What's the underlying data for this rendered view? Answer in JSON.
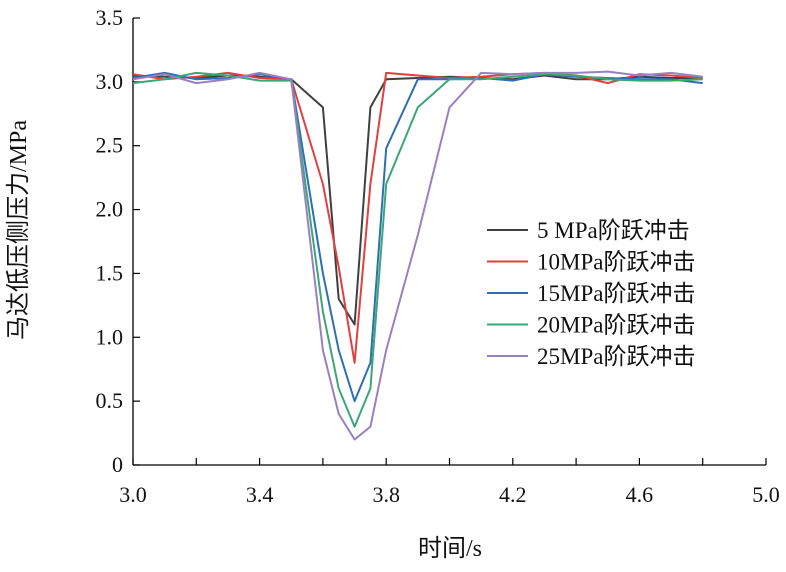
{
  "chart_data": {
    "type": "line",
    "title": "",
    "xlabel": "时间/s",
    "ylabel": "马达低压侧压力/MPa",
    "xlim": [
      3.0,
      5.0
    ],
    "ylim": [
      0,
      3.5
    ],
    "xticks": [
      3.0,
      3.4,
      3.8,
      4.2,
      4.6,
      5.0
    ],
    "xtick_labels": [
      "3.0",
      "3.4",
      "3.8",
      "4.2",
      "4.6",
      "5.0"
    ],
    "yticks": [
      0,
      0.5,
      1.0,
      1.5,
      2.0,
      2.5,
      3.0,
      3.5
    ],
    "ytick_labels": [
      "0",
      "0.5",
      "1.0",
      "1.5",
      "2.0",
      "2.5",
      "3.0",
      "3.5"
    ],
    "grid": false,
    "legend_position": "right",
    "series": [
      {
        "name": "5 MPa阶跃冲击",
        "color": "#404040",
        "x": [
          3.0,
          3.1,
          3.2,
          3.3,
          3.4,
          3.5,
          3.6,
          3.65,
          3.7,
          3.75,
          3.8,
          3.9,
          4.0,
          4.1,
          4.2,
          4.3,
          4.4,
          4.5,
          4.6,
          4.7,
          4.8
        ],
        "y": [
          3.05,
          3.04,
          3.03,
          3.05,
          3.04,
          3.02,
          2.8,
          1.3,
          1.1,
          2.8,
          3.02,
          3.03,
          3.04,
          3.03,
          3.02,
          3.05,
          3.02,
          3.02,
          3.04,
          3.03,
          3.03
        ]
      },
      {
        "name": "10MPa阶跃冲击",
        "color": "#e0403f",
        "x": [
          3.0,
          3.1,
          3.2,
          3.3,
          3.4,
          3.5,
          3.6,
          3.65,
          3.7,
          3.75,
          3.8,
          3.9,
          4.0,
          4.1,
          4.2,
          4.3,
          4.4,
          4.5,
          4.6,
          4.7,
          4.8
        ],
        "y": [
          3.06,
          3.02,
          3.04,
          3.07,
          3.03,
          3.02,
          2.2,
          1.55,
          0.8,
          2.2,
          3.07,
          3.05,
          3.03,
          3.04,
          3.06,
          3.07,
          3.05,
          2.99,
          3.06,
          3.05,
          3.03
        ]
      },
      {
        "name": "15MPa阶跃冲击",
        "color": "#2e6eb5",
        "x": [
          3.0,
          3.1,
          3.2,
          3.3,
          3.4,
          3.5,
          3.6,
          3.65,
          3.7,
          3.75,
          3.8,
          3.9,
          4.0,
          4.1,
          4.2,
          4.3,
          4.4,
          4.5,
          4.6,
          4.7,
          4.8
        ],
        "y": [
          3.03,
          3.07,
          3.02,
          3.03,
          3.06,
          3.02,
          1.5,
          0.9,
          0.5,
          0.8,
          2.48,
          3.02,
          3.02,
          3.03,
          3.01,
          3.06,
          3.04,
          3.03,
          3.02,
          3.02,
          2.99
        ]
      },
      {
        "name": "20MPa阶跃冲击",
        "color": "#3aa876",
        "x": [
          3.0,
          3.1,
          3.2,
          3.3,
          3.4,
          3.5,
          3.6,
          3.65,
          3.7,
          3.75,
          3.8,
          3.9,
          4.0,
          4.1,
          4.2,
          4.3,
          4.4,
          4.5,
          4.6,
          4.7,
          4.8
        ],
        "y": [
          2.99,
          3.02,
          3.07,
          3.05,
          3.01,
          3.01,
          1.2,
          0.6,
          0.3,
          0.6,
          2.2,
          2.8,
          3.02,
          3.02,
          3.04,
          3.06,
          3.05,
          3.02,
          3.01,
          3.01,
          3.02
        ]
      },
      {
        "name": "25MPa阶跃冲击",
        "color": "#9a80c0",
        "x": [
          3.0,
          3.1,
          3.2,
          3.3,
          3.4,
          3.5,
          3.6,
          3.65,
          3.7,
          3.75,
          3.8,
          3.9,
          4.0,
          4.1,
          4.2,
          4.3,
          4.4,
          4.5,
          4.6,
          4.7,
          4.8
        ],
        "y": [
          3.02,
          3.06,
          2.99,
          3.02,
          3.07,
          3.02,
          0.9,
          0.4,
          0.2,
          0.3,
          0.9,
          1.8,
          2.8,
          3.07,
          3.06,
          3.07,
          3.07,
          3.08,
          3.05,
          3.07,
          3.04
        ]
      }
    ]
  }
}
